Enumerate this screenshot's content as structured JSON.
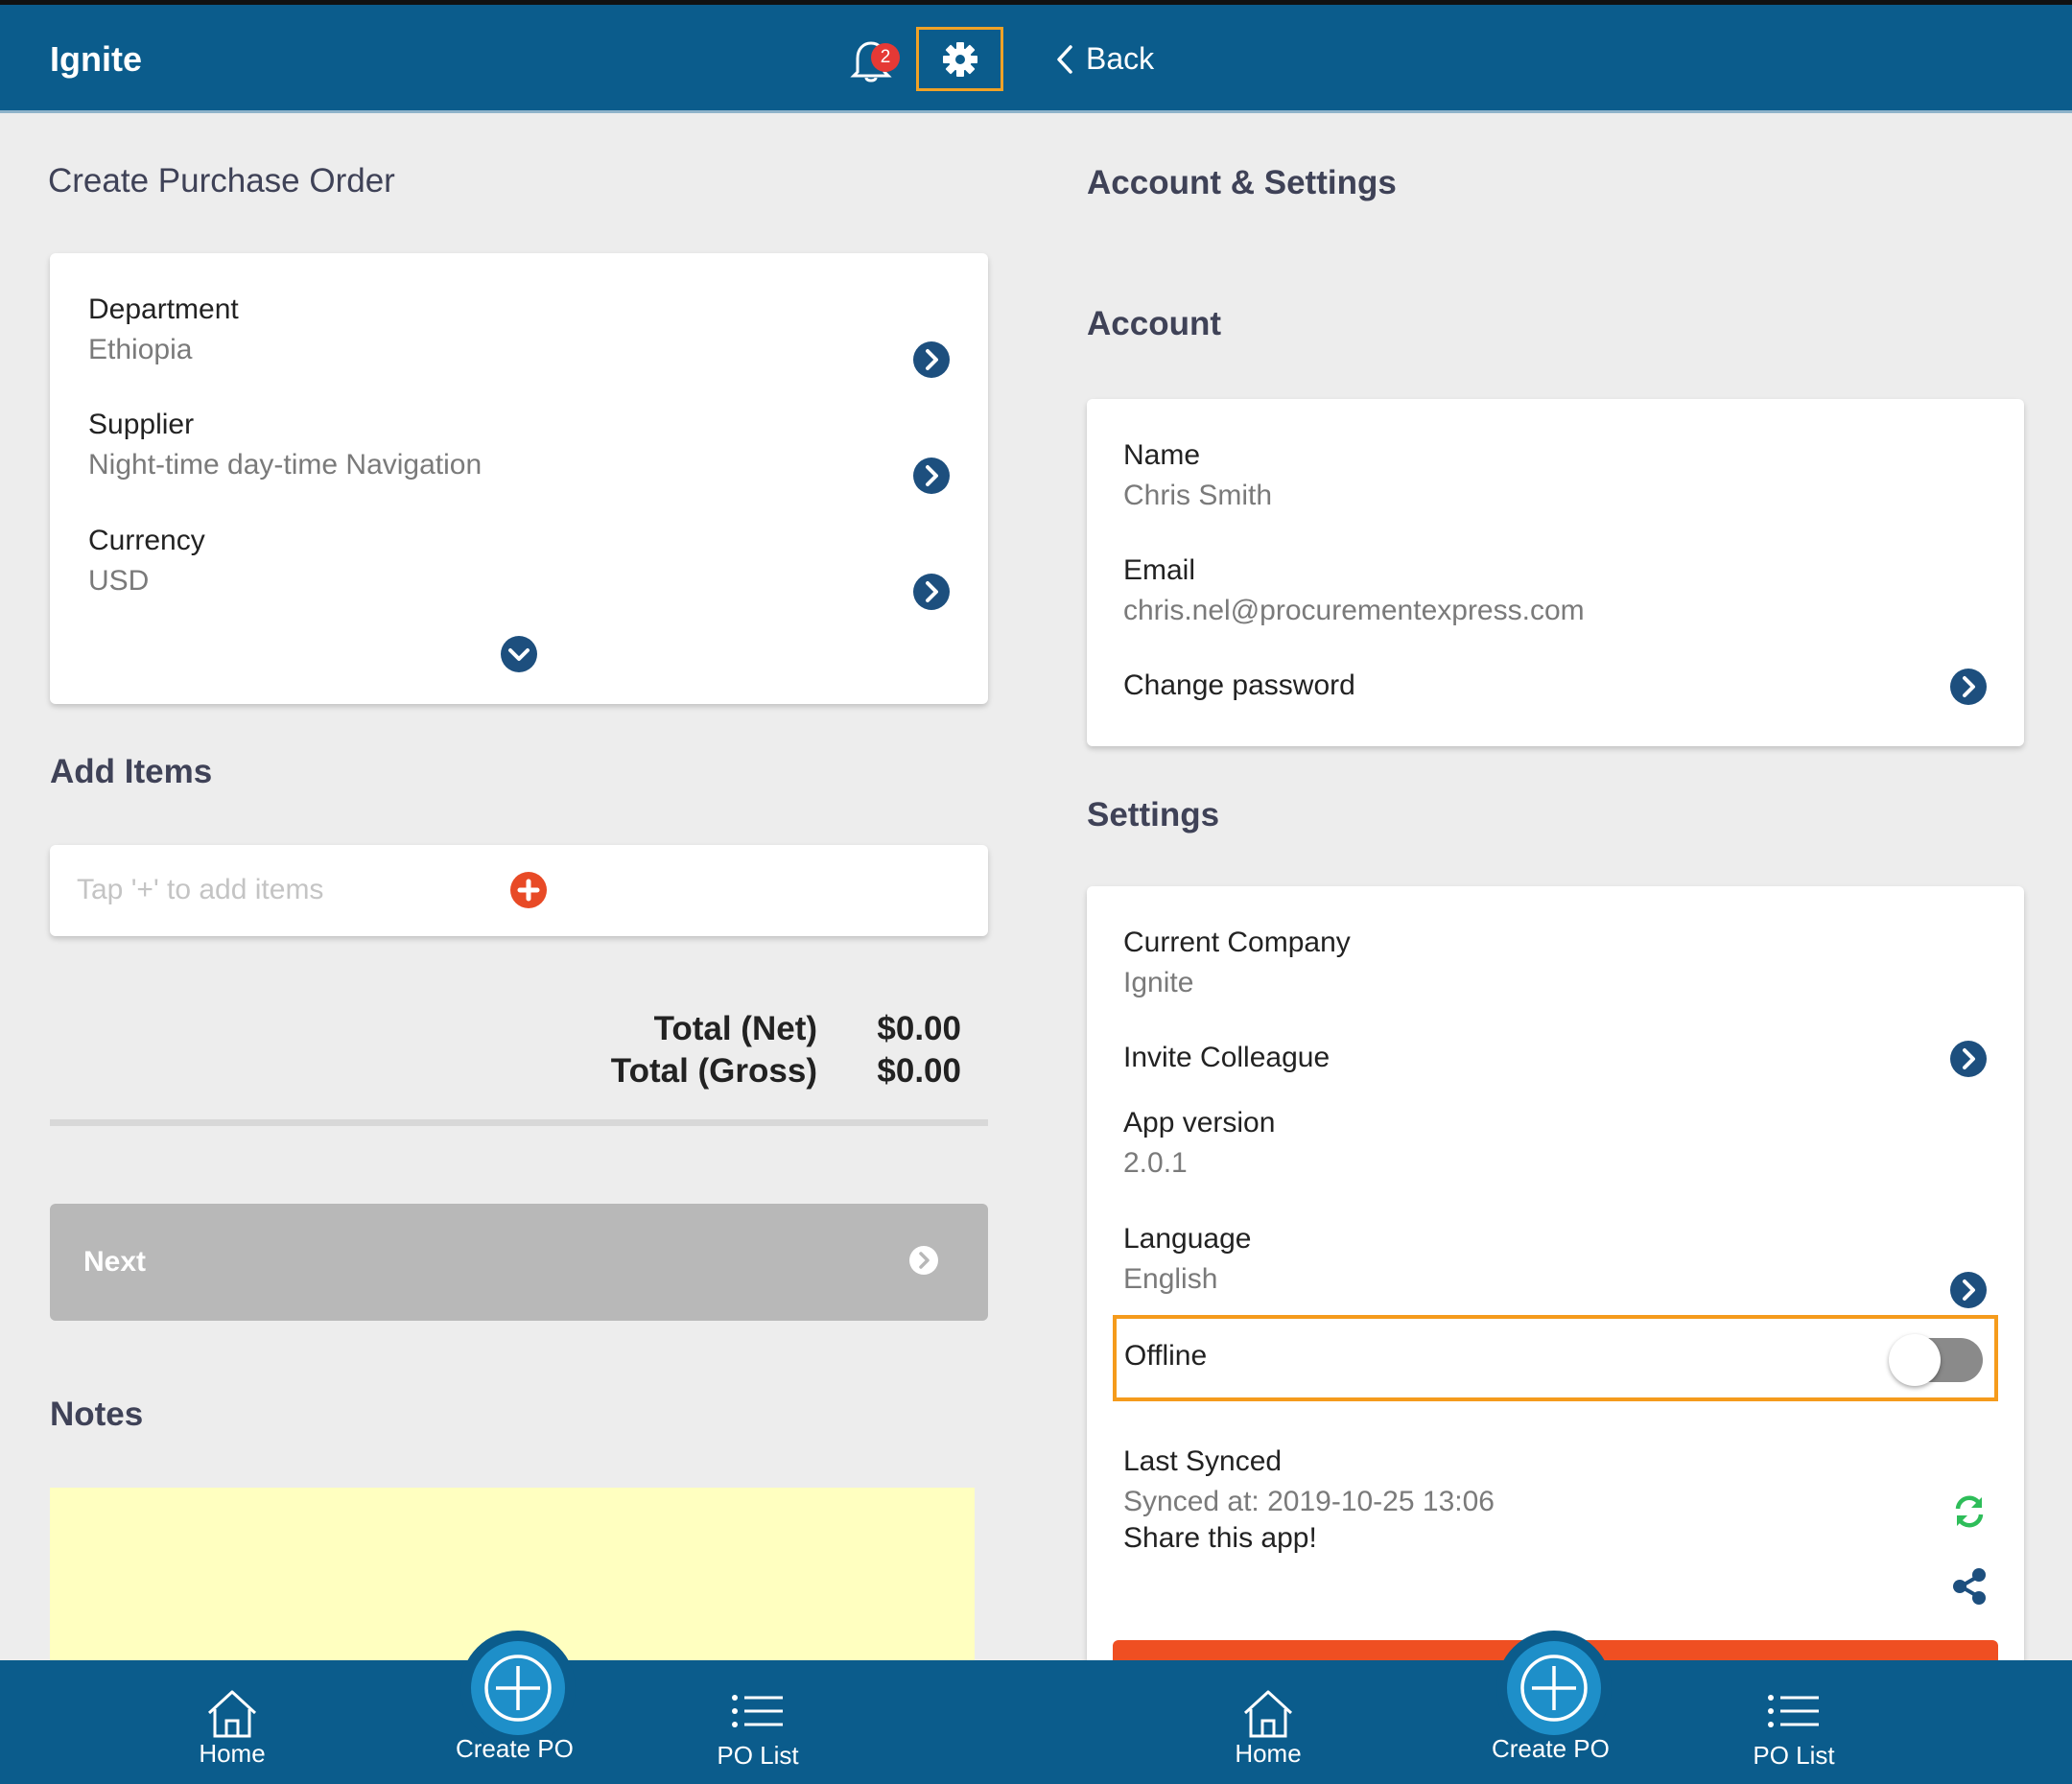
{
  "header": {
    "app_title": "Ignite",
    "notification_count": "2",
    "back_label": "Back"
  },
  "left": {
    "page_title": "Create Purchase Order",
    "fields": [
      {
        "label": "Department",
        "value": "Ethiopia"
      },
      {
        "label": "Supplier",
        "value": "Night-time day-time Navigation"
      },
      {
        "label": "Currency",
        "value": "USD"
      }
    ],
    "add_items_title": "Add Items",
    "add_items_placeholder": "Tap '+' to add items",
    "total_net_label": "Total (Net)",
    "total_net_value": "$0.00",
    "total_gross_label": "Total (Gross)",
    "total_gross_value": "$0.00",
    "next_label": "Next",
    "notes_title": "Notes"
  },
  "right": {
    "page_title": "Account & Settings",
    "account_title": "Account",
    "name_label": "Name",
    "name_value": "Chris Smith",
    "email_label": "Email",
    "email_value": "chris.nel@procurementexpress.com",
    "change_password_label": "Change password",
    "settings_title": "Settings",
    "current_company_label": "Current Company",
    "current_company_value": "Ignite",
    "invite_label": "Invite Colleague",
    "app_version_label": "App version",
    "app_version_value": "2.0.1",
    "language_label": "Language",
    "language_value": "English",
    "offline_label": "Offline",
    "offline_enabled": false,
    "last_synced_label": "Last Synced",
    "last_synced_value": "Synced at: 2019-10-25 13:06",
    "share_label": "Share this app!"
  },
  "bottom_nav": {
    "home_label": "Home",
    "create_label": "Create PO",
    "list_label": "PO List"
  },
  "colors": {
    "brand": "#0b5c8c",
    "accent_orange": "#f59b1c",
    "danger": "#ef4f22",
    "sync_green": "#2ebd59"
  }
}
